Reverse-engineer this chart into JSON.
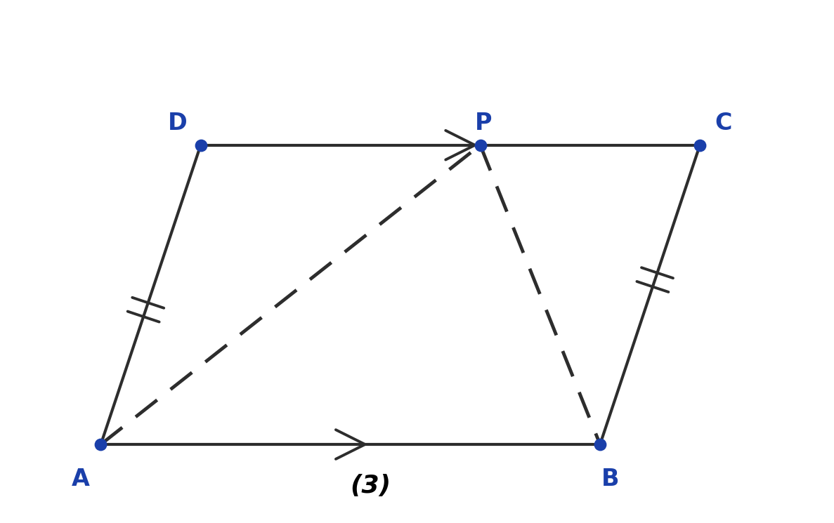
{
  "points": {
    "A": [
      1.5,
      1.0
    ],
    "B": [
      9.0,
      1.0
    ],
    "C": [
      10.5,
      5.5
    ],
    "D": [
      3.0,
      5.5
    ],
    "P": [
      7.2,
      5.5
    ]
  },
  "parallelogram_color": "#2d2d2d",
  "parallelogram_lw": 3.0,
  "dashed_color": "#2d2d2d",
  "dashed_lw": 3.5,
  "dot_color": "#1a3faa",
  "dot_size": 140,
  "label_color": "#1a3faa",
  "label_fontsize": 24,
  "label_fontweight": "bold",
  "figure_label": "(3)",
  "figure_label_fontsize": 24,
  "figure_label_fontweight": "bold",
  "bg_color": "#ffffff",
  "xlim": [
    0.0,
    12.5
  ],
  "ylim": [
    0.0,
    7.5
  ]
}
